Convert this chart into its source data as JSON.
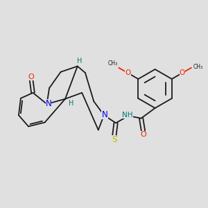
{
  "background_color": "#e0e0e0",
  "figure_size": [
    3.0,
    3.0
  ],
  "dpi": 100,
  "bond_color": "#1a1a1a",
  "bond_lw": 1.3,
  "N_color": "#0000ee",
  "O_color": "#ee2200",
  "S_color": "#bbbb00",
  "H_color": "#007777",
  "methoxy_color": "#ee2200",
  "xlim": [
    0,
    10
  ],
  "ylim": [
    0,
    10
  ]
}
